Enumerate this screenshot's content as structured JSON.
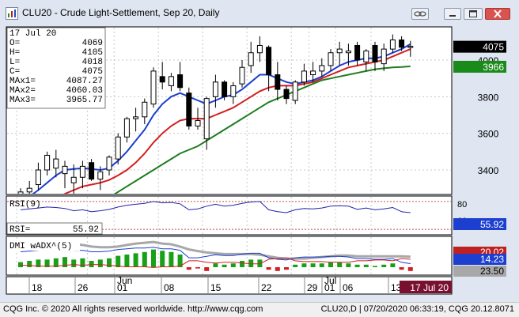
{
  "window": {
    "title": "CLU20 - Crude Light-Settlement, Sep 20, Daily"
  },
  "info_box": {
    "date": "17 Jul 20",
    "rows": [
      {
        "label": "O=",
        "value": "4069"
      },
      {
        "label": "H=",
        "value": "4105"
      },
      {
        "label": "L=",
        "value": "4018"
      },
      {
        "label": "C=",
        "value": "4075"
      },
      {
        "label": "MAx1=",
        "value": "4087.27"
      },
      {
        "label": "MAx2=",
        "value": "4060.03"
      },
      {
        "label": "MAx3=",
        "value": "3965.77"
      }
    ]
  },
  "price_axis": {
    "ticks": [
      "4000",
      "3800",
      "3600",
      "3400"
    ],
    "badges": [
      {
        "value": "4075",
        "bg": "#000000",
        "fg": "#ffffff"
      },
      {
        "value": "3966",
        "bg": "#1a8a1a",
        "fg": "#ffffff"
      }
    ]
  },
  "rsi": {
    "label": "RSI(9)",
    "value_label": "RSI=",
    "value": "55.92",
    "axis_tick": "80",
    "badge_partial": "60"
  },
  "dmi": {
    "label": "DMI wADX^(5)",
    "badges": [
      {
        "value": "20.02",
        "bg": "#c02020",
        "fg": "#ffffff"
      },
      {
        "value": "14.23",
        "bg": "#1c3fd0",
        "fg": "#ffffff"
      },
      {
        "value": "23.50",
        "bg": "#a8a8a8",
        "fg": "#000000"
      }
    ]
  },
  "time_axis": {
    "day_labels": [
      "18",
      "26",
      "01",
      "08",
      "15",
      "22",
      "29",
      "01",
      "06",
      "13"
    ],
    "month_labels": [
      "Jun",
      "Jul"
    ],
    "current_date": "17 Jul 20"
  },
  "colors": {
    "ma1": "#1c3fd0",
    "ma2": "#d21f1f",
    "ma3": "#1e7d1e",
    "rsi_line": "#2222aa",
    "dmi_plus": "#1c3fd0",
    "dmi_minus": "#d21f1f",
    "adx": "#a8a8a8",
    "hist_pos": "#18a018",
    "hist_neg": "#d21f1f"
  },
  "status": {
    "left": "CQG Inc. © 2020 All rights reserved worldwide. http://www.cqg.com",
    "right": "CLU20,D | 07/20/2020 06:33:19, CQG 20.12.8071"
  },
  "chart_data": {
    "type": "candlestick",
    "y_ticks": [
      3400,
      3600,
      3800,
      4000
    ],
    "candles": [
      {
        "d": "05-14",
        "o": 3170,
        "h": 3300,
        "l": 3120,
        "c": 3280
      },
      {
        "d": "05-15",
        "o": 3280,
        "h": 3340,
        "l": 3210,
        "c": 3300
      },
      {
        "d": "05-18",
        "o": 3320,
        "h": 3440,
        "l": 3290,
        "c": 3400
      },
      {
        "d": "05-19",
        "o": 3400,
        "h": 3500,
        "l": 3370,
        "c": 3480
      },
      {
        "d": "05-20",
        "o": 3410,
        "h": 3510,
        "l": 3360,
        "c": 3460
      },
      {
        "d": "05-21",
        "o": 3380,
        "h": 3450,
        "l": 3300,
        "c": 3420
      },
      {
        "d": "05-22",
        "o": 3330,
        "h": 3430,
        "l": 3260,
        "c": 3360
      },
      {
        "d": "05-26",
        "o": 3360,
        "h": 3450,
        "l": 3300,
        "c": 3420
      },
      {
        "d": "05-27",
        "o": 3440,
        "h": 3460,
        "l": 3340,
        "c": 3350
      },
      {
        "d": "05-28",
        "o": 3350,
        "h": 3420,
        "l": 3290,
        "c": 3390
      },
      {
        "d": "05-29",
        "o": 3400,
        "h": 3480,
        "l": 3370,
        "c": 3470
      },
      {
        "d": "06-01",
        "o": 3460,
        "h": 3600,
        "l": 3430,
        "c": 3580
      },
      {
        "d": "06-02",
        "o": 3580,
        "h": 3690,
        "l": 3550,
        "c": 3680
      },
      {
        "d": "06-03",
        "o": 3680,
        "h": 3740,
        "l": 3610,
        "c": 3690
      },
      {
        "d": "06-04",
        "o": 3690,
        "h": 3790,
        "l": 3650,
        "c": 3770
      },
      {
        "d": "06-05",
        "o": 3760,
        "h": 3960,
        "l": 3740,
        "c": 3940
      },
      {
        "d": "06-08",
        "o": 3910,
        "h": 3990,
        "l": 3840,
        "c": 3880
      },
      {
        "d": "06-09",
        "o": 3860,
        "h": 3930,
        "l": 3830,
        "c": 3910
      },
      {
        "d": "06-10",
        "o": 3920,
        "h": 3990,
        "l": 3830,
        "c": 3850
      },
      {
        "d": "06-11",
        "o": 3820,
        "h": 3850,
        "l": 3620,
        "c": 3640
      },
      {
        "d": "06-12",
        "o": 3640,
        "h": 3740,
        "l": 3620,
        "c": 3670
      },
      {
        "d": "06-15",
        "o": 3570,
        "h": 3800,
        "l": 3510,
        "c": 3790
      },
      {
        "d": "06-16",
        "o": 3800,
        "h": 3920,
        "l": 3740,
        "c": 3880
      },
      {
        "d": "06-17",
        "o": 3880,
        "h": 3890,
        "l": 3780,
        "c": 3800
      },
      {
        "d": "06-18",
        "o": 3800,
        "h": 3880,
        "l": 3760,
        "c": 3860
      },
      {
        "d": "06-19",
        "o": 3870,
        "h": 4000,
        "l": 3850,
        "c": 3960
      },
      {
        "d": "06-22",
        "o": 3970,
        "h": 4100,
        "l": 3930,
        "c": 4040
      },
      {
        "d": "06-23",
        "o": 4040,
        "h": 4130,
        "l": 3990,
        "c": 4080
      },
      {
        "d": "06-24",
        "o": 4070,
        "h": 4080,
        "l": 3830,
        "c": 3920
      },
      {
        "d": "06-25",
        "o": 3920,
        "h": 3990,
        "l": 3780,
        "c": 3840
      },
      {
        "d": "06-26",
        "o": 3840,
        "h": 3860,
        "l": 3760,
        "c": 3790
      },
      {
        "d": "06-29",
        "o": 3780,
        "h": 3890,
        "l": 3760,
        "c": 3880
      },
      {
        "d": "06-30",
        "o": 3880,
        "h": 3980,
        "l": 3860,
        "c": 3940
      },
      {
        "d": "07-01",
        "o": 3920,
        "h": 3990,
        "l": 3880,
        "c": 3940
      },
      {
        "d": "07-02",
        "o": 3940,
        "h": 4010,
        "l": 3910,
        "c": 3970
      },
      {
        "d": "07-06",
        "o": 3970,
        "h": 4060,
        "l": 3940,
        "c": 4040
      },
      {
        "d": "07-07",
        "o": 4040,
        "h": 4100,
        "l": 3970,
        "c": 4060
      },
      {
        "d": "07-08",
        "o": 4040,
        "h": 4090,
        "l": 3970,
        "c": 4050
      },
      {
        "d": "07-09",
        "o": 4080,
        "h": 4100,
        "l": 3970,
        "c": 4000
      },
      {
        "d": "07-10",
        "o": 3990,
        "h": 4060,
        "l": 3940,
        "c": 4050
      },
      {
        "d": "07-13",
        "o": 4080,
        "h": 4100,
        "l": 3940,
        "c": 3990
      },
      {
        "d": "07-14",
        "o": 3980,
        "h": 4090,
        "l": 3940,
        "c": 4060
      },
      {
        "d": "07-15",
        "o": 4060,
        "h": 4140,
        "l": 4040,
        "c": 4110
      },
      {
        "d": "07-16",
        "o": 4110,
        "h": 4130,
        "l": 4050,
        "c": 4070
      },
      {
        "d": "07-17",
        "o": 4069,
        "h": 4105,
        "l": 4018,
        "c": 4075
      }
    ],
    "ma1": [
      3230,
      3255,
      3290,
      3330,
      3370,
      3400,
      3405,
      3410,
      3405,
      3400,
      3410,
      3450,
      3500,
      3560,
      3620,
      3700,
      3760,
      3800,
      3820,
      3800,
      3780,
      3760,
      3780,
      3800,
      3810,
      3840,
      3880,
      3920,
      3920,
      3900,
      3880,
      3870,
      3880,
      3890,
      3910,
      3940,
      3970,
      3990,
      4000,
      4010,
      4010,
      4020,
      4040,
      4060,
      4087.27
    ],
    "ma2": [
      3140,
      3160,
      3180,
      3210,
      3240,
      3270,
      3290,
      3310,
      3320,
      3330,
      3345,
      3370,
      3400,
      3440,
      3490,
      3550,
      3600,
      3640,
      3670,
      3680,
      3680,
      3680,
      3700,
      3720,
      3740,
      3770,
      3800,
      3830,
      3850,
      3860,
      3860,
      3860,
      3870,
      3880,
      3900,
      3920,
      3940,
      3960,
      3970,
      3980,
      3990,
      4000,
      4020,
      4040,
      4060.03
    ],
    "ma3": [
      2980,
      3000,
      3020,
      3040,
      3070,
      3100,
      3130,
      3160,
      3190,
      3220,
      3250,
      3280,
      3310,
      3340,
      3370,
      3400,
      3430,
      3460,
      3490,
      3510,
      3530,
      3560,
      3590,
      3620,
      3650,
      3680,
      3710,
      3740,
      3770,
      3790,
      3810,
      3830,
      3850,
      3870,
      3890,
      3900,
      3910,
      3920,
      3930,
      3940,
      3950,
      3955,
      3960,
      3962,
      3965.77
    ],
    "rsi": {
      "ylim": [
        0,
        100
      ],
      "values": [
        62,
        64,
        66,
        68,
        67,
        65,
        60,
        62,
        58,
        60,
        63,
        68,
        72,
        74,
        76,
        80,
        77,
        78,
        75,
        62,
        64,
        70,
        74,
        70,
        72,
        76,
        79,
        80,
        62,
        58,
        56,
        62,
        65,
        64,
        66,
        70,
        71,
        70,
        63,
        66,
        62,
        64,
        67,
        58,
        55.92
      ]
    },
    "dmi": {
      "hist": [
        4,
        5,
        6,
        6,
        7,
        8,
        6,
        7,
        5,
        6,
        7,
        9,
        10,
        11,
        12,
        14,
        13,
        12,
        10,
        -2,
        -1,
        -3,
        3,
        2,
        3,
        5,
        6,
        6,
        -2,
        -3,
        -2,
        2,
        3,
        3,
        3,
        4,
        4,
        3,
        2,
        2,
        1,
        2,
        3,
        -2,
        -3
      ],
      "plus": [
        30,
        31,
        32,
        33,
        34,
        34,
        32,
        32,
        30,
        30,
        31,
        33,
        34,
        35,
        35,
        36,
        34,
        34,
        32,
        22,
        22,
        24,
        26,
        25,
        25,
        27,
        28,
        28,
        22,
        20,
        19,
        22,
        23,
        23,
        23,
        24,
        24,
        23,
        21,
        21,
        20,
        20,
        21,
        16,
        14.23
      ],
      "minus": [
        12,
        12,
        11,
        11,
        11,
        12,
        13,
        12,
        13,
        13,
        12,
        11,
        10,
        10,
        10,
        9,
        10,
        10,
        11,
        18,
        18,
        16,
        15,
        16,
        16,
        15,
        14,
        14,
        20,
        21,
        22,
        18,
        17,
        17,
        17,
        16,
        16,
        16,
        18,
        18,
        19,
        19,
        18,
        21,
        20.02
      ],
      "adx": [
        40,
        41,
        42,
        43,
        43,
        42,
        40,
        39,
        37,
        36,
        36,
        37,
        39,
        41,
        42,
        43,
        41,
        40,
        37,
        33,
        31,
        29,
        28,
        27,
        27,
        27,
        27,
        26,
        24,
        22,
        21,
        21,
        21,
        22,
        23,
        24,
        25,
        25,
        24,
        24,
        24,
        24,
        24,
        24,
        23.5
      ]
    }
  }
}
